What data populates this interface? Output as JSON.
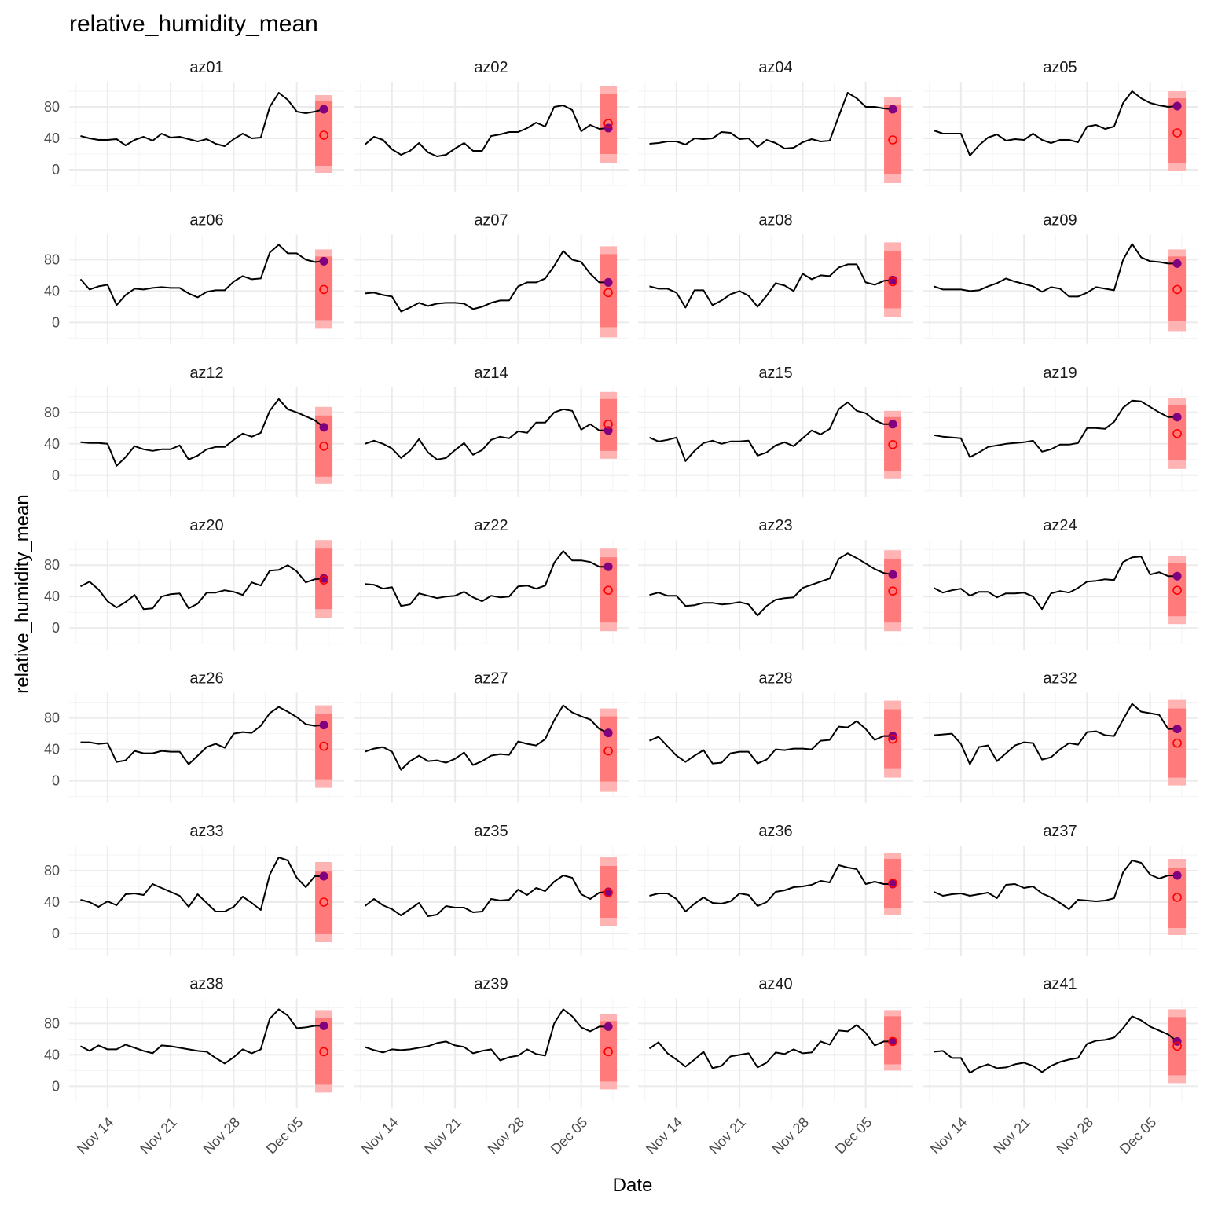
{
  "chart_data": {
    "type": "line",
    "title": "relative_humidity_mean",
    "xlabel": "Date",
    "ylabel": "relative_humidity_mean",
    "ylim": [
      -20,
      112
    ],
    "y_ticks": [
      0,
      40,
      80
    ],
    "x_ticks": [
      {
        "date": "2021-11-14",
        "label": "Nov 14"
      },
      {
        "date": "2021-11-21",
        "label": "Nov 21"
      },
      {
        "date": "2021-11-28",
        "label": "Nov 28"
      },
      {
        "date": "2021-12-05",
        "label": "Dec 05"
      }
    ],
    "xlim": [
      "2021-11-11",
      "2021-12-09"
    ],
    "observed_dates": [
      "2021-11-11",
      "2021-11-12",
      "2021-11-13",
      "2021-11-14",
      "2021-11-15",
      "2021-11-16",
      "2021-11-17",
      "2021-11-18",
      "2021-11-19",
      "2021-11-20",
      "2021-11-21",
      "2021-11-22",
      "2021-11-23",
      "2021-11-24",
      "2021-11-25",
      "2021-11-26",
      "2021-11-27",
      "2021-11-28",
      "2021-11-29",
      "2021-11-30",
      "2021-12-01",
      "2021-12-02",
      "2021-12-03",
      "2021-12-04",
      "2021-12-05",
      "2021-12-06",
      "2021-12-07"
    ],
    "forecast_date": "2021-12-08",
    "grid": true,
    "legend": "none",
    "colors": {
      "line": "#000000",
      "point_observed": "#800080",
      "point_forecast": "#ff0000",
      "interval_outer": "#ffb3b3",
      "interval_inner": "#ff7a7a",
      "grid": "#ebebeb"
    },
    "panels": [
      {
        "site": "az01",
        "values": [
          43,
          40,
          38,
          38,
          39,
          31,
          38,
          42,
          37,
          46,
          41,
          42,
          39,
          36,
          39,
          33,
          30,
          39,
          46,
          40,
          41,
          80,
          98,
          89,
          74,
          72,
          74
        ],
        "observed_point": 77,
        "forecast_mean": 44,
        "interval_inner": [
          5,
          87
        ],
        "interval_outer": [
          -4,
          95
        ]
      },
      {
        "site": "az02",
        "values": [
          32,
          42,
          38,
          26,
          19,
          24,
          34,
          22,
          17,
          19,
          27,
          34,
          24,
          24,
          43,
          45,
          48,
          48,
          53,
          60,
          55,
          80,
          82,
          76,
          49,
          57,
          52
        ],
        "observed_point": 53,
        "forecast_mean": 59,
        "interval_inner": [
          20,
          96
        ],
        "interval_outer": [
          9,
          107
        ]
      },
      {
        "site": "az04",
        "values": [
          33,
          34,
          36,
          36,
          32,
          40,
          39,
          40,
          48,
          47,
          39,
          40,
          29,
          38,
          34,
          27,
          28,
          35,
          39,
          36,
          37,
          68,
          98,
          91,
          80,
          80,
          78
        ],
        "observed_point": 77,
        "forecast_mean": 38,
        "interval_inner": [
          -5,
          82
        ],
        "interval_outer": [
          -17,
          93
        ]
      },
      {
        "site": "az05",
        "values": [
          50,
          46,
          46,
          46,
          18,
          31,
          41,
          45,
          37,
          39,
          38,
          46,
          38,
          34,
          38,
          38,
          35,
          55,
          57,
          52,
          55,
          85,
          100,
          91,
          85,
          82,
          80
        ],
        "observed_point": 81,
        "forecast_mean": 47,
        "interval_inner": [
          8,
          91
        ],
        "interval_outer": [
          -2,
          100
        ]
      },
      {
        "site": "az06",
        "values": [
          55,
          42,
          46,
          48,
          22,
          35,
          43,
          42,
          44,
          45,
          44,
          44,
          37,
          32,
          39,
          41,
          41,
          52,
          59,
          55,
          56,
          89,
          99,
          88,
          88,
          80,
          77
        ],
        "observed_point": 78,
        "forecast_mean": 42,
        "interval_inner": [
          3,
          84
        ],
        "interval_outer": [
          -8,
          93
        ]
      },
      {
        "site": "az07",
        "values": [
          37,
          38,
          35,
          33,
          14,
          19,
          25,
          21,
          24,
          25,
          25,
          24,
          17,
          20,
          25,
          28,
          28,
          46,
          51,
          51,
          56,
          72,
          91,
          80,
          77,
          62,
          51
        ],
        "observed_point": 51,
        "forecast_mean": 38,
        "interval_inner": [
          -6,
          87
        ],
        "interval_outer": [
          -19,
          97
        ]
      },
      {
        "site": "az08",
        "values": [
          46,
          43,
          43,
          38,
          19,
          41,
          41,
          22,
          28,
          36,
          40,
          34,
          20,
          34,
          50,
          47,
          40,
          62,
          55,
          60,
          59,
          70,
          74,
          74,
          51,
          48,
          53
        ],
        "observed_point": 54,
        "forecast_mean": 52,
        "interval_inner": [
          18,
          91
        ],
        "interval_outer": [
          7,
          102
        ]
      },
      {
        "site": "az09",
        "values": [
          46,
          42,
          42,
          42,
          40,
          41,
          46,
          50,
          56,
          52,
          49,
          46,
          39,
          45,
          43,
          33,
          33,
          38,
          45,
          43,
          41,
          80,
          100,
          83,
          78,
          77,
          75
        ],
        "observed_point": 75,
        "forecast_mean": 42,
        "interval_inner": [
          2,
          84
        ],
        "interval_outer": [
          -11,
          93
        ]
      },
      {
        "site": "az12",
        "values": [
          42,
          41,
          41,
          40,
          12,
          23,
          37,
          33,
          31,
          33,
          33,
          38,
          20,
          25,
          33,
          36,
          36,
          45,
          53,
          49,
          54,
          82,
          97,
          84,
          80,
          75,
          70
        ],
        "observed_point": 61,
        "forecast_mean": 37,
        "interval_inner": [
          -2,
          76
        ],
        "interval_outer": [
          -11,
          87
        ]
      },
      {
        "site": "az14",
        "values": [
          40,
          44,
          40,
          34,
          22,
          31,
          46,
          29,
          20,
          22,
          32,
          41,
          26,
          32,
          45,
          49,
          47,
          56,
          54,
          67,
          67,
          80,
          84,
          82,
          58,
          65,
          57
        ],
        "observed_point": 57,
        "forecast_mean": 65,
        "interval_inner": [
          31,
          97
        ],
        "interval_outer": [
          21,
          106
        ]
      },
      {
        "site": "az15",
        "values": [
          48,
          43,
          45,
          48,
          18,
          31,
          41,
          44,
          40,
          43,
          43,
          44,
          25,
          29,
          38,
          42,
          37,
          47,
          57,
          52,
          59,
          84,
          93,
          82,
          79,
          70,
          65
        ],
        "observed_point": 65,
        "forecast_mean": 39,
        "interval_inner": [
          5,
          74
        ],
        "interval_outer": [
          -4,
          82
        ]
      },
      {
        "site": "az19",
        "values": [
          51,
          49,
          48,
          47,
          23,
          29,
          36,
          38,
          40,
          41,
          42,
          44,
          30,
          33,
          39,
          39,
          41,
          60,
          60,
          59,
          68,
          86,
          95,
          94,
          87,
          80,
          74
        ],
        "observed_point": 74,
        "forecast_mean": 53,
        "interval_inner": [
          19,
          89
        ],
        "interval_outer": [
          8,
          98
        ]
      },
      {
        "site": "az20",
        "values": [
          53,
          59,
          49,
          34,
          26,
          33,
          42,
          24,
          25,
          40,
          43,
          44,
          25,
          31,
          45,
          45,
          48,
          46,
          42,
          58,
          54,
          73,
          74,
          80,
          72,
          58,
          62
        ],
        "observed_point": 63,
        "forecast_mean": 61,
        "interval_inner": [
          24,
          101
        ],
        "interval_outer": [
          13,
          112
        ]
      },
      {
        "site": "az22",
        "values": [
          56,
          55,
          50,
          52,
          28,
          30,
          44,
          41,
          38,
          40,
          41,
          46,
          39,
          34,
          41,
          39,
          40,
          53,
          54,
          50,
          54,
          83,
          98,
          86,
          86,
          84,
          78
        ],
        "observed_point": 78,
        "forecast_mean": 48,
        "interval_inner": [
          7,
          90
        ],
        "interval_outer": [
          -4,
          101
        ]
      },
      {
        "site": "az23",
        "values": [
          42,
          45,
          41,
          41,
          28,
          29,
          32,
          32,
          30,
          31,
          33,
          30,
          16,
          28,
          36,
          38,
          39,
          51,
          55,
          59,
          63,
          88,
          95,
          89,
          82,
          75,
          70
        ],
        "observed_point": 68,
        "forecast_mean": 47,
        "interval_inner": [
          7,
          88
        ],
        "interval_outer": [
          -4,
          99
        ]
      },
      {
        "site": "az24",
        "values": [
          51,
          45,
          48,
          50,
          41,
          46,
          46,
          39,
          44,
          44,
          45,
          40,
          24,
          44,
          47,
          45,
          51,
          59,
          60,
          62,
          61,
          84,
          90,
          91,
          68,
          71,
          66
        ],
        "observed_point": 66,
        "forecast_mean": 48,
        "interval_inner": [
          15,
          83
        ],
        "interval_outer": [
          5,
          92
        ]
      },
      {
        "site": "az26",
        "values": [
          49,
          49,
          47,
          48,
          24,
          26,
          38,
          35,
          35,
          38,
          37,
          37,
          21,
          32,
          43,
          47,
          42,
          60,
          62,
          61,
          70,
          86,
          94,
          88,
          81,
          72,
          70
        ],
        "observed_point": 71,
        "forecast_mean": 44,
        "interval_inner": [
          2,
          85
        ],
        "interval_outer": [
          -9,
          96
        ]
      },
      {
        "site": "az27",
        "values": [
          37,
          41,
          43,
          37,
          14,
          25,
          32,
          25,
          26,
          23,
          28,
          36,
          20,
          25,
          32,
          34,
          33,
          50,
          47,
          45,
          53,
          77,
          96,
          87,
          82,
          78,
          66
        ],
        "observed_point": 61,
        "forecast_mean": 38,
        "interval_inner": [
          -1,
          82
        ],
        "interval_outer": [
          -14,
          92
        ]
      },
      {
        "site": "az28",
        "values": [
          51,
          56,
          44,
          32,
          24,
          32,
          39,
          22,
          23,
          35,
          37,
          37,
          22,
          27,
          40,
          39,
          41,
          41,
          40,
          51,
          52,
          69,
          68,
          76,
          66,
          52,
          57
        ],
        "observed_point": 57,
        "forecast_mean": 53,
        "interval_inner": [
          16,
          91
        ],
        "interval_outer": [
          4,
          102
        ]
      },
      {
        "site": "az32",
        "values": [
          58,
          59,
          60,
          47,
          21,
          43,
          45,
          25,
          35,
          45,
          49,
          48,
          27,
          30,
          40,
          48,
          46,
          62,
          63,
          58,
          57,
          78,
          98,
          88,
          86,
          84,
          66
        ],
        "observed_point": 66,
        "forecast_mean": 48,
        "interval_inner": [
          4,
          92
        ],
        "interval_outer": [
          -6,
          103
        ]
      },
      {
        "site": "az33",
        "values": [
          43,
          40,
          34,
          41,
          36,
          50,
          51,
          49,
          63,
          58,
          53,
          48,
          34,
          50,
          39,
          28,
          28,
          34,
          47,
          39,
          30,
          75,
          97,
          93,
          71,
          59,
          73
        ],
        "observed_point": 73,
        "forecast_mean": 40,
        "interval_inner": [
          0,
          80
        ],
        "interval_outer": [
          -11,
          91
        ]
      },
      {
        "site": "az35",
        "values": [
          35,
          44,
          36,
          31,
          23,
          31,
          39,
          22,
          24,
          35,
          33,
          33,
          27,
          28,
          44,
          42,
          43,
          56,
          49,
          58,
          54,
          66,
          74,
          71,
          50,
          44,
          52
        ],
        "observed_point": 53,
        "forecast_mean": 52,
        "interval_inner": [
          20,
          86
        ],
        "interval_outer": [
          9,
          97
        ]
      },
      {
        "site": "az36",
        "values": [
          48,
          51,
          51,
          44,
          28,
          38,
          46,
          39,
          38,
          41,
          51,
          49,
          35,
          40,
          53,
          55,
          59,
          60,
          62,
          67,
          65,
          87,
          84,
          82,
          63,
          66,
          63
        ],
        "observed_point": 63,
        "forecast_mean": 64,
        "interval_inner": [
          32,
          95
        ],
        "interval_outer": [
          24,
          102
        ]
      },
      {
        "site": "az37",
        "values": [
          53,
          48,
          50,
          51,
          48,
          50,
          52,
          45,
          62,
          63,
          58,
          60,
          51,
          46,
          39,
          31,
          43,
          42,
          41,
          42,
          45,
          78,
          93,
          90,
          75,
          70,
          74
        ],
        "observed_point": 74,
        "forecast_mean": 46,
        "interval_inner": [
          7,
          84
        ],
        "interval_outer": [
          -2,
          95
        ]
      },
      {
        "site": "az38",
        "values": [
          51,
          45,
          52,
          47,
          47,
          53,
          49,
          45,
          42,
          52,
          51,
          49,
          47,
          45,
          44,
          36,
          29,
          37,
          47,
          42,
          47,
          86,
          98,
          90,
          74,
          75,
          77
        ],
        "observed_point": 77,
        "forecast_mean": 44,
        "interval_inner": [
          2,
          87
        ],
        "interval_outer": [
          -8,
          97
        ]
      },
      {
        "site": "az39",
        "values": [
          50,
          46,
          43,
          47,
          46,
          47,
          49,
          51,
          55,
          57,
          52,
          50,
          42,
          45,
          47,
          33,
          37,
          39,
          47,
          41,
          39,
          80,
          98,
          89,
          75,
          70,
          76
        ],
        "observed_point": 76,
        "forecast_mean": 44,
        "interval_inner": [
          6,
          83
        ],
        "interval_outer": [
          -4,
          92
        ]
      },
      {
        "site": "az40",
        "values": [
          48,
          56,
          42,
          34,
          25,
          34,
          44,
          23,
          26,
          38,
          40,
          42,
          24,
          30,
          43,
          41,
          47,
          42,
          43,
          57,
          53,
          71,
          70,
          78,
          68,
          52,
          57
        ],
        "observed_point": 57,
        "forecast_mean": 57,
        "interval_inner": [
          28,
          89
        ],
        "interval_outer": [
          20,
          97
        ]
      },
      {
        "site": "az41",
        "values": [
          44,
          45,
          36,
          36,
          17,
          24,
          28,
          23,
          24,
          28,
          30,
          26,
          18,
          26,
          31,
          34,
          36,
          54,
          58,
          59,
          62,
          74,
          89,
          84,
          76,
          71,
          66
        ],
        "observed_point": 57,
        "forecast_mean": 51,
        "interval_inner": [
          14,
          88
        ],
        "interval_outer": [
          4,
          98
        ]
      }
    ]
  }
}
